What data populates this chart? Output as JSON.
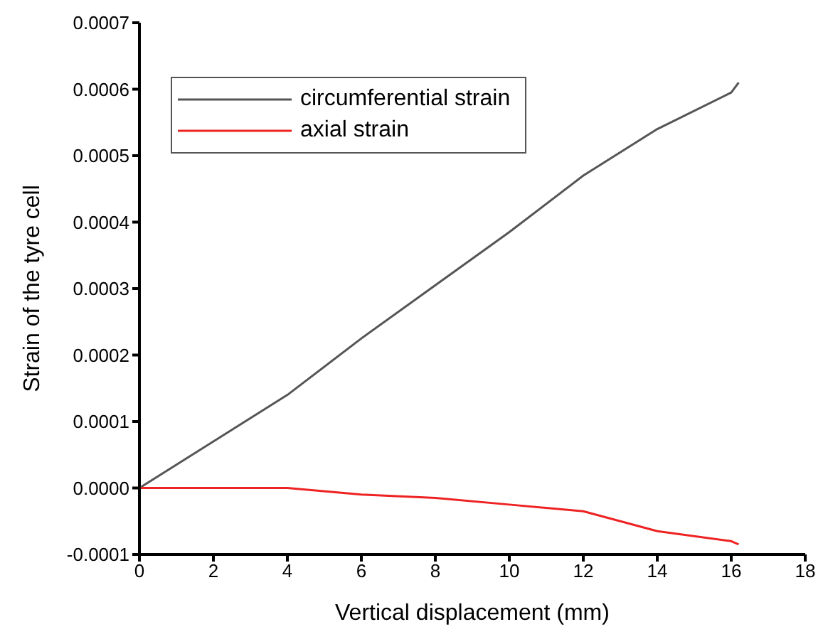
{
  "chart_data": {
    "type": "line",
    "xlabel": "Vertical displacement (mm)",
    "ylabel": "Strain of the tyre cell",
    "x": [
      0,
      4,
      6,
      8,
      10,
      12,
      14,
      16,
      16.2
    ],
    "series": [
      {
        "name": "circumferential strain",
        "color": "#555555",
        "values": [
          0,
          0.00014,
          0.000225,
          0.000305,
          0.000385,
          0.00047,
          0.00054,
          0.000595,
          0.00061
        ]
      },
      {
        "name": "axial strain",
        "color": "#ee2222",
        "values": [
          0,
          0,
          -1e-05,
          -1.5e-05,
          -2.5e-05,
          -3.5e-05,
          -6.5e-05,
          -8e-05,
          -8.5e-05
        ]
      }
    ],
    "xlim": [
      0,
      18
    ],
    "xticks": [
      0,
      2,
      4,
      6,
      8,
      10,
      12,
      14,
      16,
      18
    ],
    "ylim": [
      -0.0001,
      0.0007
    ],
    "yticks": [
      {
        "value": -0.0001,
        "label": "-0.0001"
      },
      {
        "value": 0,
        "label": "0.0000"
      },
      {
        "value": 0.0001,
        "label": "0.0001"
      },
      {
        "value": 0.0002,
        "label": "0.0002"
      },
      {
        "value": 0.0003,
        "label": "0.0003"
      },
      {
        "value": 0.0004,
        "label": "0.0004"
      },
      {
        "value": 0.0005,
        "label": "0.0005"
      },
      {
        "value": 0.0006,
        "label": "0.0006"
      },
      {
        "value": 0.0007,
        "label": "0.0007"
      }
    ],
    "grid": false,
    "legend": "top left",
    "marker": "none",
    "line_style": "solid"
  }
}
